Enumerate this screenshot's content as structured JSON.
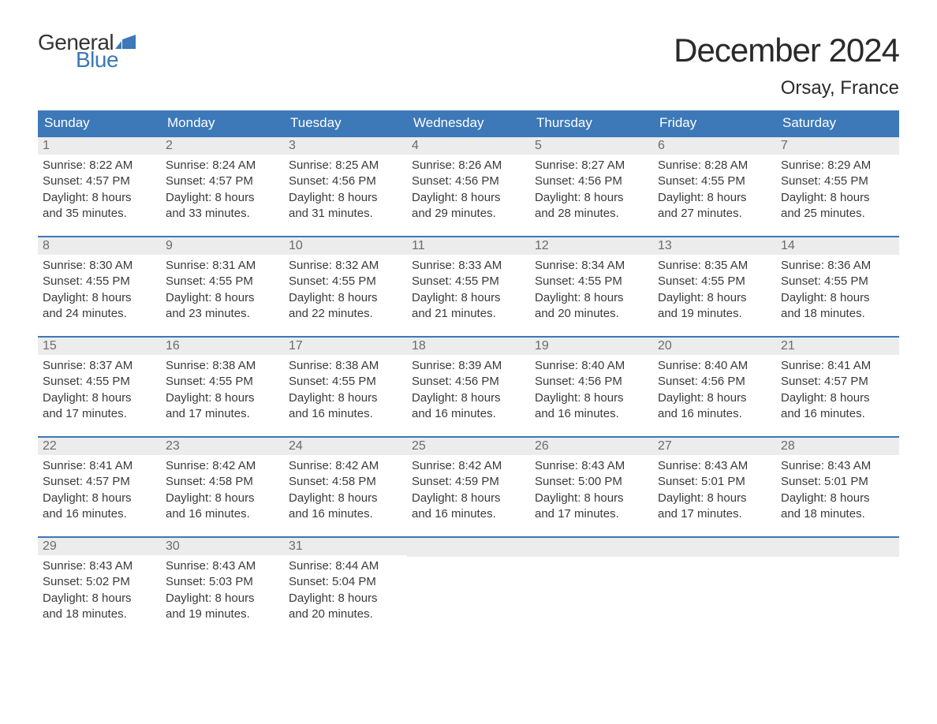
{
  "brand": {
    "general": "General",
    "blue": "Blue",
    "flag_color": "#3d78b8"
  },
  "title": "December 2024",
  "location": "Orsay, France",
  "colors": {
    "header_bg": "#3d78b8",
    "header_text": "#ffffff",
    "daynum_bg": "#ececec",
    "daynum_text": "#6b6b6b",
    "body_text": "#3a3a3a",
    "rule": "#3d78b8",
    "background": "#ffffff"
  },
  "typography": {
    "title_fontsize": 42,
    "location_fontsize": 24,
    "weekday_fontsize": 17,
    "daynum_fontsize": 16,
    "body_fontsize": 15
  },
  "weekdays": [
    "Sunday",
    "Monday",
    "Tuesday",
    "Wednesday",
    "Thursday",
    "Friday",
    "Saturday"
  ],
  "weeks": [
    [
      {
        "num": "1",
        "sunrise": "8:22 AM",
        "sunset": "4:57 PM",
        "daylight_h": "8",
        "daylight_m": "35"
      },
      {
        "num": "2",
        "sunrise": "8:24 AM",
        "sunset": "4:57 PM",
        "daylight_h": "8",
        "daylight_m": "33"
      },
      {
        "num": "3",
        "sunrise": "8:25 AM",
        "sunset": "4:56 PM",
        "daylight_h": "8",
        "daylight_m": "31"
      },
      {
        "num": "4",
        "sunrise": "8:26 AM",
        "sunset": "4:56 PM",
        "daylight_h": "8",
        "daylight_m": "29"
      },
      {
        "num": "5",
        "sunrise": "8:27 AM",
        "sunset": "4:56 PM",
        "daylight_h": "8",
        "daylight_m": "28"
      },
      {
        "num": "6",
        "sunrise": "8:28 AM",
        "sunset": "4:55 PM",
        "daylight_h": "8",
        "daylight_m": "27"
      },
      {
        "num": "7",
        "sunrise": "8:29 AM",
        "sunset": "4:55 PM",
        "daylight_h": "8",
        "daylight_m": "25"
      }
    ],
    [
      {
        "num": "8",
        "sunrise": "8:30 AM",
        "sunset": "4:55 PM",
        "daylight_h": "8",
        "daylight_m": "24"
      },
      {
        "num": "9",
        "sunrise": "8:31 AM",
        "sunset": "4:55 PM",
        "daylight_h": "8",
        "daylight_m": "23"
      },
      {
        "num": "10",
        "sunrise": "8:32 AM",
        "sunset": "4:55 PM",
        "daylight_h": "8",
        "daylight_m": "22"
      },
      {
        "num": "11",
        "sunrise": "8:33 AM",
        "sunset": "4:55 PM",
        "daylight_h": "8",
        "daylight_m": "21"
      },
      {
        "num": "12",
        "sunrise": "8:34 AM",
        "sunset": "4:55 PM",
        "daylight_h": "8",
        "daylight_m": "20"
      },
      {
        "num": "13",
        "sunrise": "8:35 AM",
        "sunset": "4:55 PM",
        "daylight_h": "8",
        "daylight_m": "19"
      },
      {
        "num": "14",
        "sunrise": "8:36 AM",
        "sunset": "4:55 PM",
        "daylight_h": "8",
        "daylight_m": "18"
      }
    ],
    [
      {
        "num": "15",
        "sunrise": "8:37 AM",
        "sunset": "4:55 PM",
        "daylight_h": "8",
        "daylight_m": "17"
      },
      {
        "num": "16",
        "sunrise": "8:38 AM",
        "sunset": "4:55 PM",
        "daylight_h": "8",
        "daylight_m": "17"
      },
      {
        "num": "17",
        "sunrise": "8:38 AM",
        "sunset": "4:55 PM",
        "daylight_h": "8",
        "daylight_m": "16"
      },
      {
        "num": "18",
        "sunrise": "8:39 AM",
        "sunset": "4:56 PM",
        "daylight_h": "8",
        "daylight_m": "16"
      },
      {
        "num": "19",
        "sunrise": "8:40 AM",
        "sunset": "4:56 PM",
        "daylight_h": "8",
        "daylight_m": "16"
      },
      {
        "num": "20",
        "sunrise": "8:40 AM",
        "sunset": "4:56 PM",
        "daylight_h": "8",
        "daylight_m": "16"
      },
      {
        "num": "21",
        "sunrise": "8:41 AM",
        "sunset": "4:57 PM",
        "daylight_h": "8",
        "daylight_m": "16"
      }
    ],
    [
      {
        "num": "22",
        "sunrise": "8:41 AM",
        "sunset": "4:57 PM",
        "daylight_h": "8",
        "daylight_m": "16"
      },
      {
        "num": "23",
        "sunrise": "8:42 AM",
        "sunset": "4:58 PM",
        "daylight_h": "8",
        "daylight_m": "16"
      },
      {
        "num": "24",
        "sunrise": "8:42 AM",
        "sunset": "4:58 PM",
        "daylight_h": "8",
        "daylight_m": "16"
      },
      {
        "num": "25",
        "sunrise": "8:42 AM",
        "sunset": "4:59 PM",
        "daylight_h": "8",
        "daylight_m": "16"
      },
      {
        "num": "26",
        "sunrise": "8:43 AM",
        "sunset": "5:00 PM",
        "daylight_h": "8",
        "daylight_m": "17"
      },
      {
        "num": "27",
        "sunrise": "8:43 AM",
        "sunset": "5:01 PM",
        "daylight_h": "8",
        "daylight_m": "17"
      },
      {
        "num": "28",
        "sunrise": "8:43 AM",
        "sunset": "5:01 PM",
        "daylight_h": "8",
        "daylight_m": "18"
      }
    ],
    [
      {
        "num": "29",
        "sunrise": "8:43 AM",
        "sunset": "5:02 PM",
        "daylight_h": "8",
        "daylight_m": "18"
      },
      {
        "num": "30",
        "sunrise": "8:43 AM",
        "sunset": "5:03 PM",
        "daylight_h": "8",
        "daylight_m": "19"
      },
      {
        "num": "31",
        "sunrise": "8:44 AM",
        "sunset": "5:04 PM",
        "daylight_h": "8",
        "daylight_m": "20"
      },
      null,
      null,
      null,
      null
    ]
  ],
  "labels": {
    "sunrise_prefix": "Sunrise: ",
    "sunset_prefix": "Sunset: ",
    "daylight_prefix": "Daylight: ",
    "hours_word": " hours",
    "and_word": "and ",
    "minutes_word": " minutes."
  }
}
